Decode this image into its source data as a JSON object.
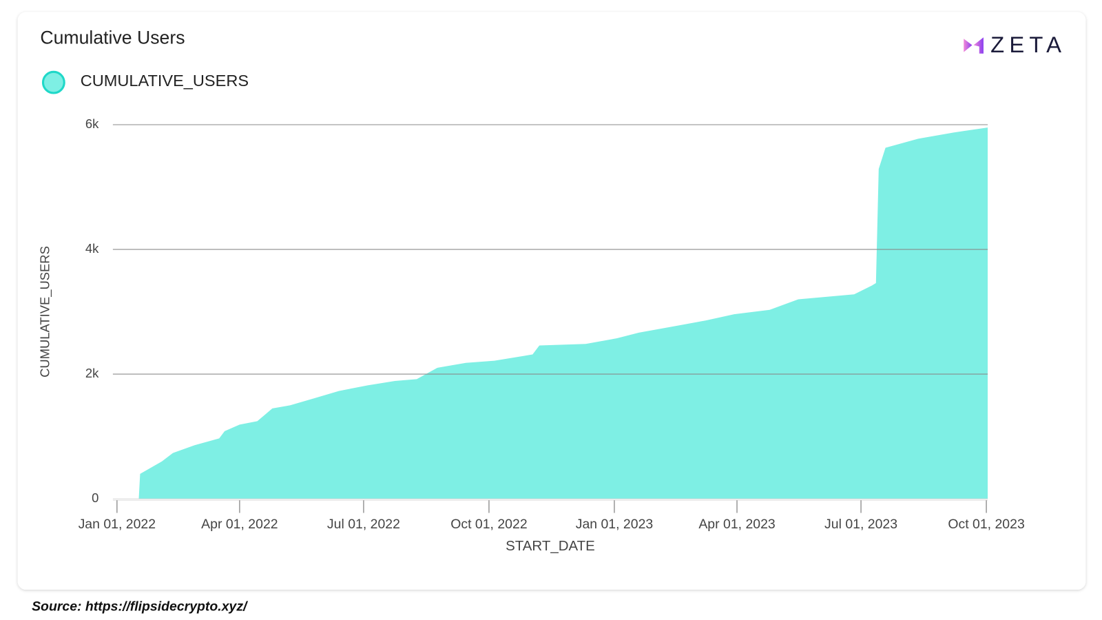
{
  "chart_data": {
    "type": "area",
    "title": "Cumulative Users",
    "x_label": "START_DATE",
    "y_label": "CUMULATIVE_USERS",
    "x": [
      "2022-01-17",
      "2022-01-18",
      "2022-02-03",
      "2022-02-11",
      "2022-02-27",
      "2022-03-17",
      "2022-03-21",
      "2022-04-01",
      "2022-04-14",
      "2022-04-25",
      "2022-05-08",
      "2022-05-26",
      "2022-06-13",
      "2022-07-04",
      "2022-07-24",
      "2022-08-09",
      "2022-08-24",
      "2022-09-14",
      "2022-10-05",
      "2022-11-02",
      "2022-11-07",
      "2022-12-11",
      "2023-01-03",
      "2023-01-19",
      "2023-02-17",
      "2023-03-09",
      "2023-03-30",
      "2023-04-25",
      "2023-05-16",
      "2023-06-26",
      "2023-07-09",
      "2023-07-12",
      "2023-07-14",
      "2023-07-19",
      "2023-08-12",
      "2023-09-07",
      "2023-10-02"
    ],
    "series": [
      {
        "name": "CUMULATIVE_USERS",
        "color": "#7eefe4",
        "values": [
          0,
          400,
          600,
          735,
          860,
          970,
          1085,
          1190,
          1245,
          1450,
          1500,
          1615,
          1730,
          1820,
          1890,
          1920,
          2100,
          2180,
          2215,
          2315,
          2460,
          2485,
          2575,
          2665,
          2780,
          2860,
          2960,
          3030,
          3200,
          3280,
          3420,
          3460,
          5290,
          5630,
          5775,
          5875,
          5955
        ]
      }
    ],
    "xlim": [
      "2021-12-29",
      "2023-10-02"
    ],
    "xticks": [
      {
        "value": "2022-01-01",
        "label": "Jan 01, 2022"
      },
      {
        "value": "2022-04-01",
        "label": "Apr 01, 2022"
      },
      {
        "value": "2022-07-01",
        "label": "Jul 01, 2022"
      },
      {
        "value": "2022-10-01",
        "label": "Oct 01, 2022"
      },
      {
        "value": "2023-01-01",
        "label": "Jan 01, 2023"
      },
      {
        "value": "2023-04-01",
        "label": "Apr 01, 2023"
      },
      {
        "value": "2023-07-01",
        "label": "Jul 01, 2023"
      },
      {
        "value": "2023-10-01",
        "label": "Oct 01, 2023"
      }
    ],
    "ylim": [
      0,
      6000
    ],
    "yticks": [
      0,
      {
        "value": 2000,
        "label": "2k"
      },
      {
        "value": 4000,
        "label": "4k"
      },
      {
        "value": 6000,
        "label": "6k"
      }
    ],
    "grid": true
  },
  "logo": "ZETA",
  "source": "Source: https://flipsidecrypto.xyz/"
}
